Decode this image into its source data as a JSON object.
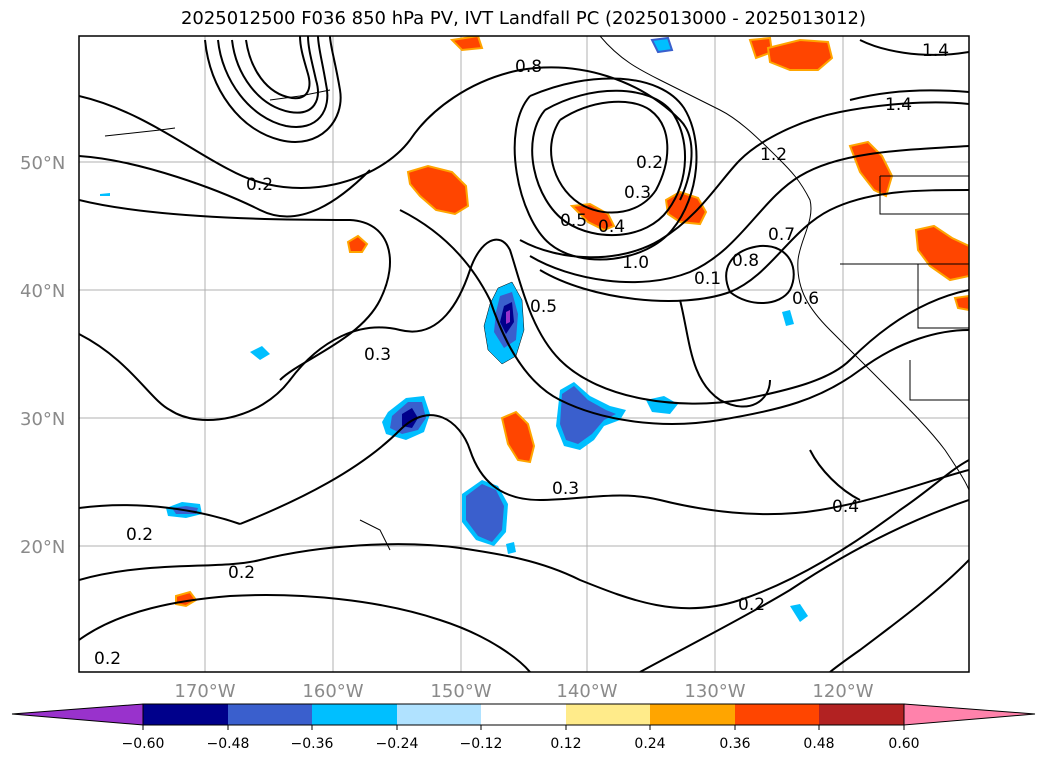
{
  "title": "2025012500 F036 850 hPa PV, IVT Landfall PC (2025013000 - 2025013012)",
  "map": {
    "lat_labels": [
      "50°N",
      "40°N",
      "30°N",
      "20°N"
    ],
    "lon_labels": [
      "170°W",
      "160°W",
      "150°W",
      "140°W",
      "130°W",
      "120°W"
    ],
    "contour_labels": [
      "0.8",
      "1.4",
      "0.2",
      "0.2",
      "0.3",
      "1.0",
      "0.5",
      "0.4",
      "1.2",
      "1.4",
      "0.7",
      "0.8",
      "0.1",
      "0.6",
      "0.5",
      "0.3",
      "0.3",
      "0.2",
      "0.2",
      "0.4",
      "0.2",
      "0.2"
    ]
  },
  "colorbar": {
    "ticks": [
      "−0.60",
      "−0.48",
      "−0.36",
      "−0.24",
      "−0.12",
      "0.12",
      "0.24",
      "0.36",
      "0.48",
      "0.60"
    ],
    "colors": [
      "#9932cc",
      "#00008b",
      "#3a5fcd",
      "#00bfff",
      "#b0e2ff",
      "#ffffff",
      "#ffeb8a",
      "#ffa500",
      "#ff4500",
      "#b22222",
      "#ff82ab"
    ]
  }
}
